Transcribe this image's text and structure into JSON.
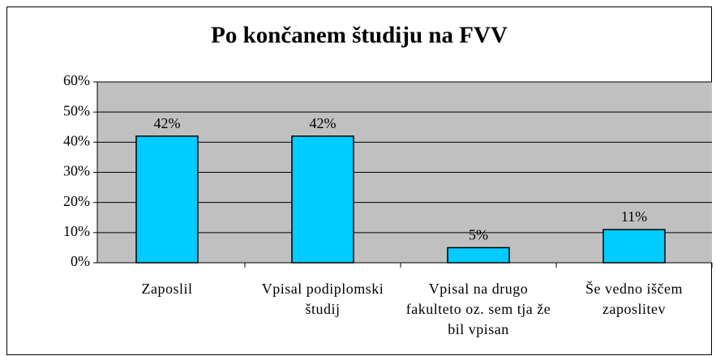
{
  "chart_data": {
    "type": "bar",
    "title": "Po končanem študiju na FVV",
    "categories": [
      "Zaposlil",
      "Vpisal podiplomski študij",
      "Vpisal na drugo fakulteto oz. sem tja že bil vpisan",
      "Še vedno iščem zaposlitev"
    ],
    "values": [
      42,
      42,
      5,
      11
    ],
    "value_labels": [
      "42%",
      "42%",
      "5%",
      "11%"
    ],
    "color": "#00ccff",
    "ylim": [
      0,
      60
    ],
    "yticks": [
      {
        "value": 0,
        "label": "0%"
      },
      {
        "value": 10,
        "label": "10%"
      },
      {
        "value": 20,
        "label": "20%"
      },
      {
        "value": 30,
        "label": "30%"
      },
      {
        "value": 40,
        "label": "40%"
      },
      {
        "value": 50,
        "label": "50%"
      },
      {
        "value": 60,
        "label": "60%"
      }
    ],
    "grid": true
  }
}
